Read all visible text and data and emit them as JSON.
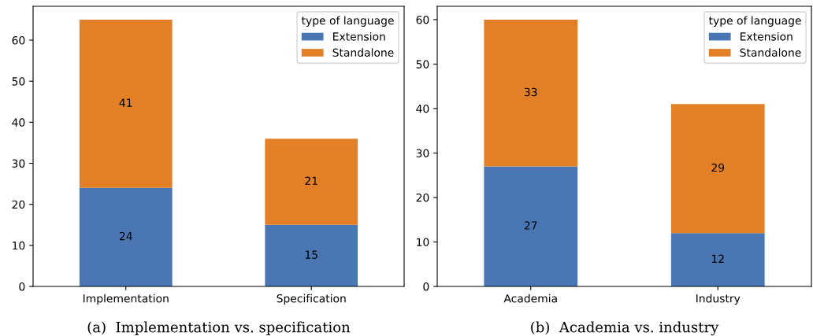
{
  "chart_data": [
    {
      "type": "bar",
      "stacked": true,
      "categories": [
        "Implementation",
        "Specification"
      ],
      "legend_title": "type of language",
      "legend": "top right",
      "data_labels": true,
      "ylim": [
        0,
        68.25
      ],
      "yticks": [
        0,
        10,
        20,
        30,
        40,
        50,
        60
      ],
      "grid": false,
      "series": [
        {
          "name": "Extension",
          "color": "#4a77b4",
          "values": [
            24,
            15
          ]
        },
        {
          "name": "Standalone",
          "color": "#e37f26",
          "values": [
            41,
            21
          ]
        }
      ],
      "annotations": [
        "(a)  Implementation vs. specification"
      ]
    },
    {
      "type": "bar",
      "stacked": true,
      "categories": [
        "Academia",
        "Industry"
      ],
      "legend_title": "type of language",
      "legend": "top right",
      "data_labels": true,
      "ylim": [
        0,
        63
      ],
      "yticks": [
        0,
        10,
        20,
        30,
        40,
        50,
        60
      ],
      "grid": false,
      "series": [
        {
          "name": "Extension",
          "color": "#4a77b4",
          "values": [
            27,
            12
          ]
        },
        {
          "name": "Standalone",
          "color": "#e37f26",
          "values": [
            33,
            29
          ]
        }
      ],
      "annotations": [
        "(b)  Academia vs. industry"
      ]
    }
  ]
}
